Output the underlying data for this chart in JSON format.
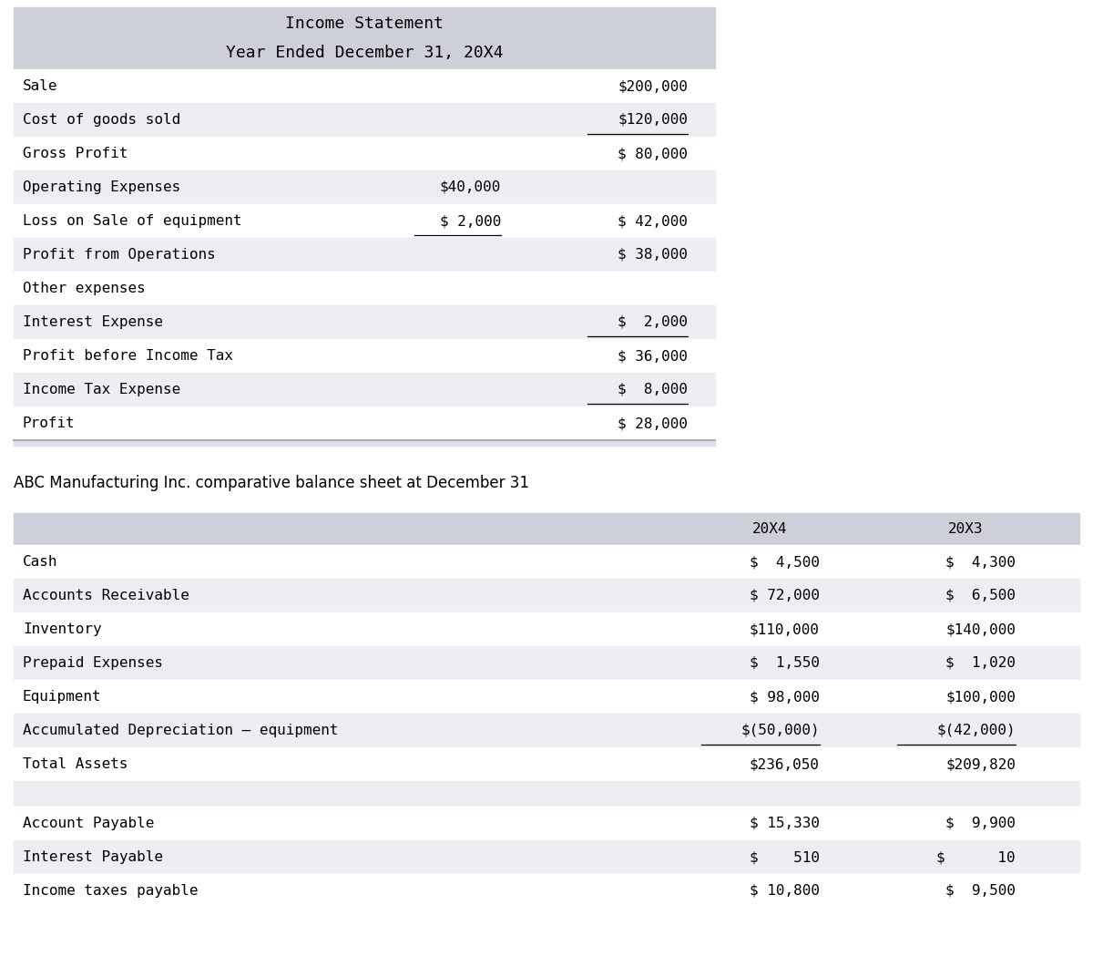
{
  "bg_color": "#ffffff",
  "header_bg": "#cdd0d9",
  "row_alt_bg": "#eceef2",
  "row_white_bg": "#ffffff",
  "sep_bg": "#dde0e8",
  "font_mono": "monospace",
  "font_sans": "DejaVu Sans",
  "fig_w": 12.0,
  "fig_h": 10.72,
  "dpi": 100,
  "income_statement": {
    "title_line1": "Income Statement",
    "title_line2": "Year Ended December 31, 20X4",
    "rows": [
      {
        "label": "Sale",
        "col1": "",
        "col2": "$200,000",
        "ul1": false,
        "ul2": false,
        "alt": false
      },
      {
        "label": "Cost of goods sold",
        "col1": "",
        "col2": "$120,000",
        "ul1": false,
        "ul2": true,
        "alt": true
      },
      {
        "label": "Gross Profit",
        "col1": "",
        "col2": "$ 80,000",
        "ul1": false,
        "ul2": false,
        "alt": false
      },
      {
        "label": "Operating Expenses",
        "col1": "$40,000",
        "col2": "",
        "ul1": false,
        "ul2": false,
        "alt": true
      },
      {
        "label": "Loss on Sale of equipment",
        "col1": "$ 2,000",
        "col2": "$ 42,000",
        "ul1": true,
        "ul2": false,
        "alt": false
      },
      {
        "label": "Profit from Operations",
        "col1": "",
        "col2": "$ 38,000",
        "ul1": false,
        "ul2": false,
        "alt": true
      },
      {
        "label": "Other expenses",
        "col1": "",
        "col2": "",
        "ul1": false,
        "ul2": false,
        "alt": false
      },
      {
        "label": "Interest Expense",
        "col1": "",
        "col2": "$  2,000",
        "ul1": false,
        "ul2": true,
        "alt": true
      },
      {
        "label": "Profit before Income Tax",
        "col1": "",
        "col2": "$ 36,000",
        "ul1": false,
        "ul2": false,
        "alt": false
      },
      {
        "label": "Income Tax Expense",
        "col1": "",
        "col2": "$  8,000",
        "ul1": false,
        "ul2": true,
        "alt": true
      },
      {
        "label": "Profit",
        "col1": "",
        "col2": "$ 28,000",
        "ul1": false,
        "ul2": false,
        "alt": false
      }
    ]
  },
  "balance_sheet": {
    "title": "ABC Manufacturing Inc. comparative balance sheet at December 31",
    "col1_header": "20X4",
    "col2_header": "20X3",
    "asset_rows": [
      {
        "label": "Cash",
        "col1": "$  4,500",
        "col2": "$  4,300",
        "ul1": false,
        "ul2": false,
        "alt": false
      },
      {
        "label": "Accounts Receivable",
        "col1": "$ 72,000",
        "col2": "$  6,500",
        "ul1": false,
        "ul2": false,
        "alt": true
      },
      {
        "label": "Inventory",
        "col1": "$110,000",
        "col2": "$140,000",
        "ul1": false,
        "ul2": false,
        "alt": false
      },
      {
        "label": "Prepaid Expenses",
        "col1": "$  1,550",
        "col2": "$  1,020",
        "ul1": false,
        "ul2": false,
        "alt": true
      },
      {
        "label": "Equipment",
        "col1": "$ 98,000",
        "col2": "$100,000",
        "ul1": false,
        "ul2": false,
        "alt": false
      },
      {
        "label": "Accumulated Depreciation – equipment",
        "col1": "$(50,000)",
        "col2": "$(42,000)",
        "ul1": true,
        "ul2": true,
        "alt": true
      },
      {
        "label": "Total Assets",
        "col1": "$236,050",
        "col2": "$209,820",
        "ul1": false,
        "ul2": false,
        "alt": false
      }
    ],
    "liability_rows": [
      {
        "label": "Account Payable",
        "col1": "$ 15,330",
        "col2": "$  9,900",
        "ul1": false,
        "ul2": false,
        "alt": false
      },
      {
        "label": "Interest Payable",
        "col1": "$    510",
        "col2": "$      10",
        "ul1": false,
        "ul2": false,
        "alt": true
      },
      {
        "label": "Income taxes payable",
        "col1": "$ 10,800",
        "col2": "$  9,500",
        "ul1": false,
        "ul2": false,
        "alt": false
      }
    ]
  }
}
